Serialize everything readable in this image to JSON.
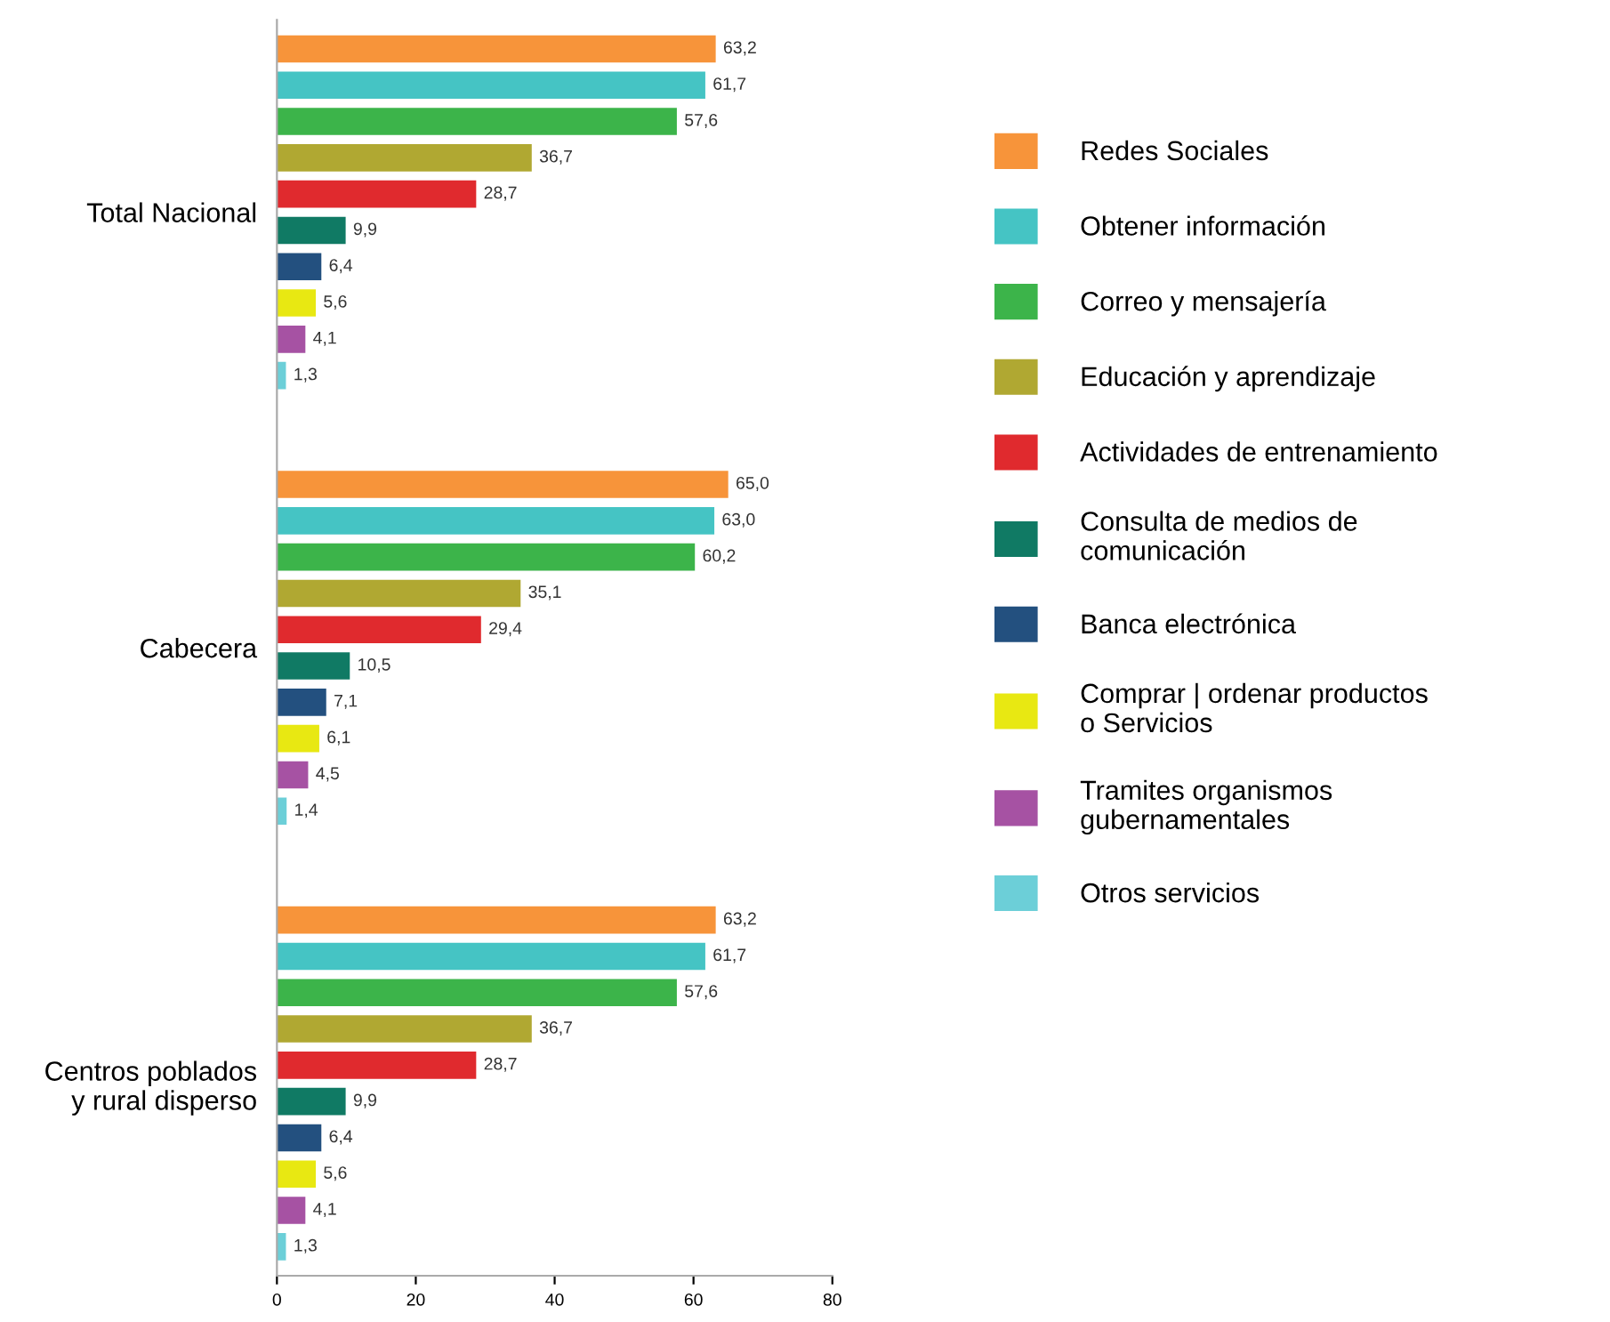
{
  "chart_data": {
    "type": "bar",
    "orientation": "horizontal",
    "categories": [
      "Total Nacional",
      "Cabecera",
      "Centros poblados y rural disperso"
    ],
    "series": [
      {
        "name": "Redes Sociales",
        "color": "#f7943a",
        "values": [
          63.2,
          65.0,
          63.2
        ],
        "value_labels": [
          "63,2",
          "65,0",
          "63,2"
        ]
      },
      {
        "name": "Obtener información",
        "color": "#45c4c4",
        "values": [
          61.7,
          63.0,
          61.7
        ],
        "value_labels": [
          "61,7",
          "63,0",
          "61,7"
        ]
      },
      {
        "name": "Correo y mensajería",
        "color": "#3cb44a",
        "values": [
          57.6,
          60.2,
          57.6
        ],
        "value_labels": [
          "57,6",
          "60,2",
          "57,6"
        ]
      },
      {
        "name": "Educación y aprendizaje",
        "color": "#b0a832",
        "values": [
          36.7,
          35.1,
          36.7
        ],
        "value_labels": [
          "36,7",
          "35,1",
          "36,7"
        ]
      },
      {
        "name": "Actividades de entrenamiento",
        "color": "#e02a2e",
        "values": [
          28.7,
          29.4,
          28.7
        ],
        "value_labels": [
          "28,7",
          "29,4",
          "28,7"
        ]
      },
      {
        "name": "Consulta de medios de comunicación",
        "color": "#107a64",
        "values": [
          9.9,
          10.5,
          9.9
        ],
        "value_labels": [
          "9,9",
          "10,5",
          "9,9"
        ]
      },
      {
        "name": "Banca electrónica",
        "color": "#23507f",
        "values": [
          6.4,
          7.1,
          6.4
        ],
        "value_labels": [
          "6,4",
          "7,1",
          "6,4"
        ]
      },
      {
        "name": "Comprar | ordenar productos o Servicios",
        "color": "#e8e812",
        "values": [
          5.6,
          6.1,
          5.6
        ],
        "value_labels": [
          "5,6",
          "6,1",
          "5,6"
        ]
      },
      {
        "name": "Tramites organismos gubernamentales",
        "color": "#a652a3",
        "values": [
          4.1,
          4.5,
          4.1
        ],
        "value_labels": [
          "4,1",
          "4,5",
          "4,1"
        ]
      },
      {
        "name": "Otros servicios",
        "color": "#6ccfd8",
        "values": [
          1.3,
          1.4,
          1.3
        ],
        "value_labels": [
          "1,3",
          "1,4",
          "1,3"
        ]
      }
    ],
    "xlim": [
      0,
      80
    ],
    "xticks": [
      0,
      20,
      40,
      60,
      80
    ],
    "grid": false,
    "legend": "right"
  }
}
